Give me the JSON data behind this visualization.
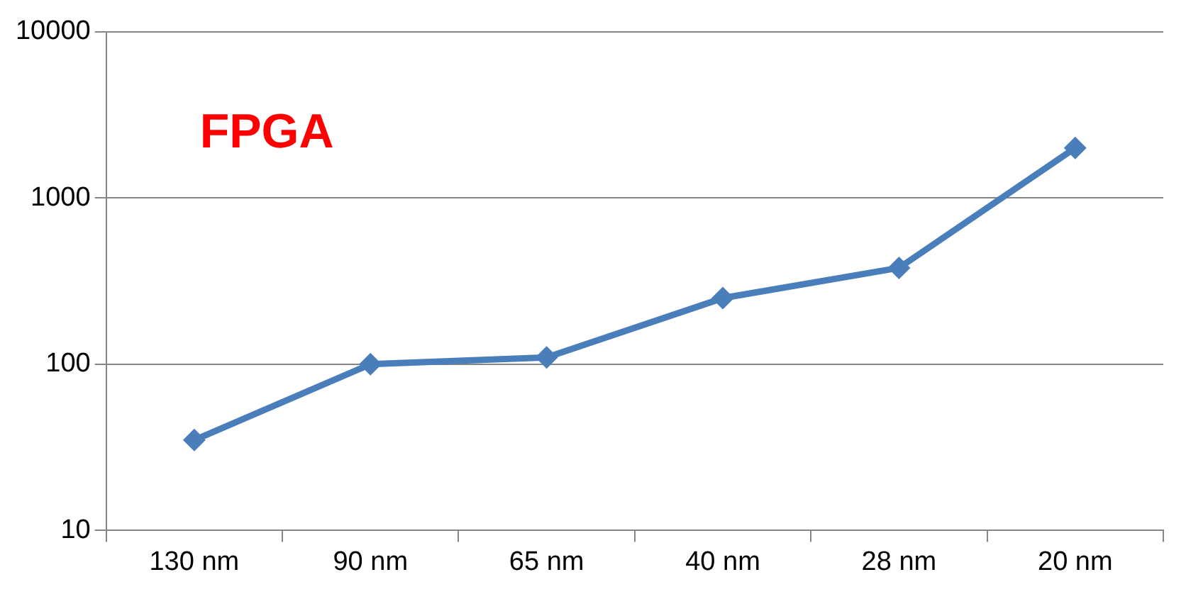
{
  "chart_data": {
    "type": "line",
    "annotations": [
      "FPGA"
    ],
    "categories": [
      "130 nm",
      "90 nm",
      "65 nm",
      "40 nm",
      "28 nm",
      "20 nm"
    ],
    "series": [
      {
        "color": "#4a7ebb",
        "values": [
          35,
          100,
          110,
          250,
          380,
          2000
        ]
      }
    ],
    "ylim": [
      10,
      10000
    ],
    "yticks": [
      10,
      100,
      1000,
      10000
    ],
    "log": true,
    "grid": "y",
    "legend": false,
    "marker": "diamond",
    "line_style": "solid"
  }
}
